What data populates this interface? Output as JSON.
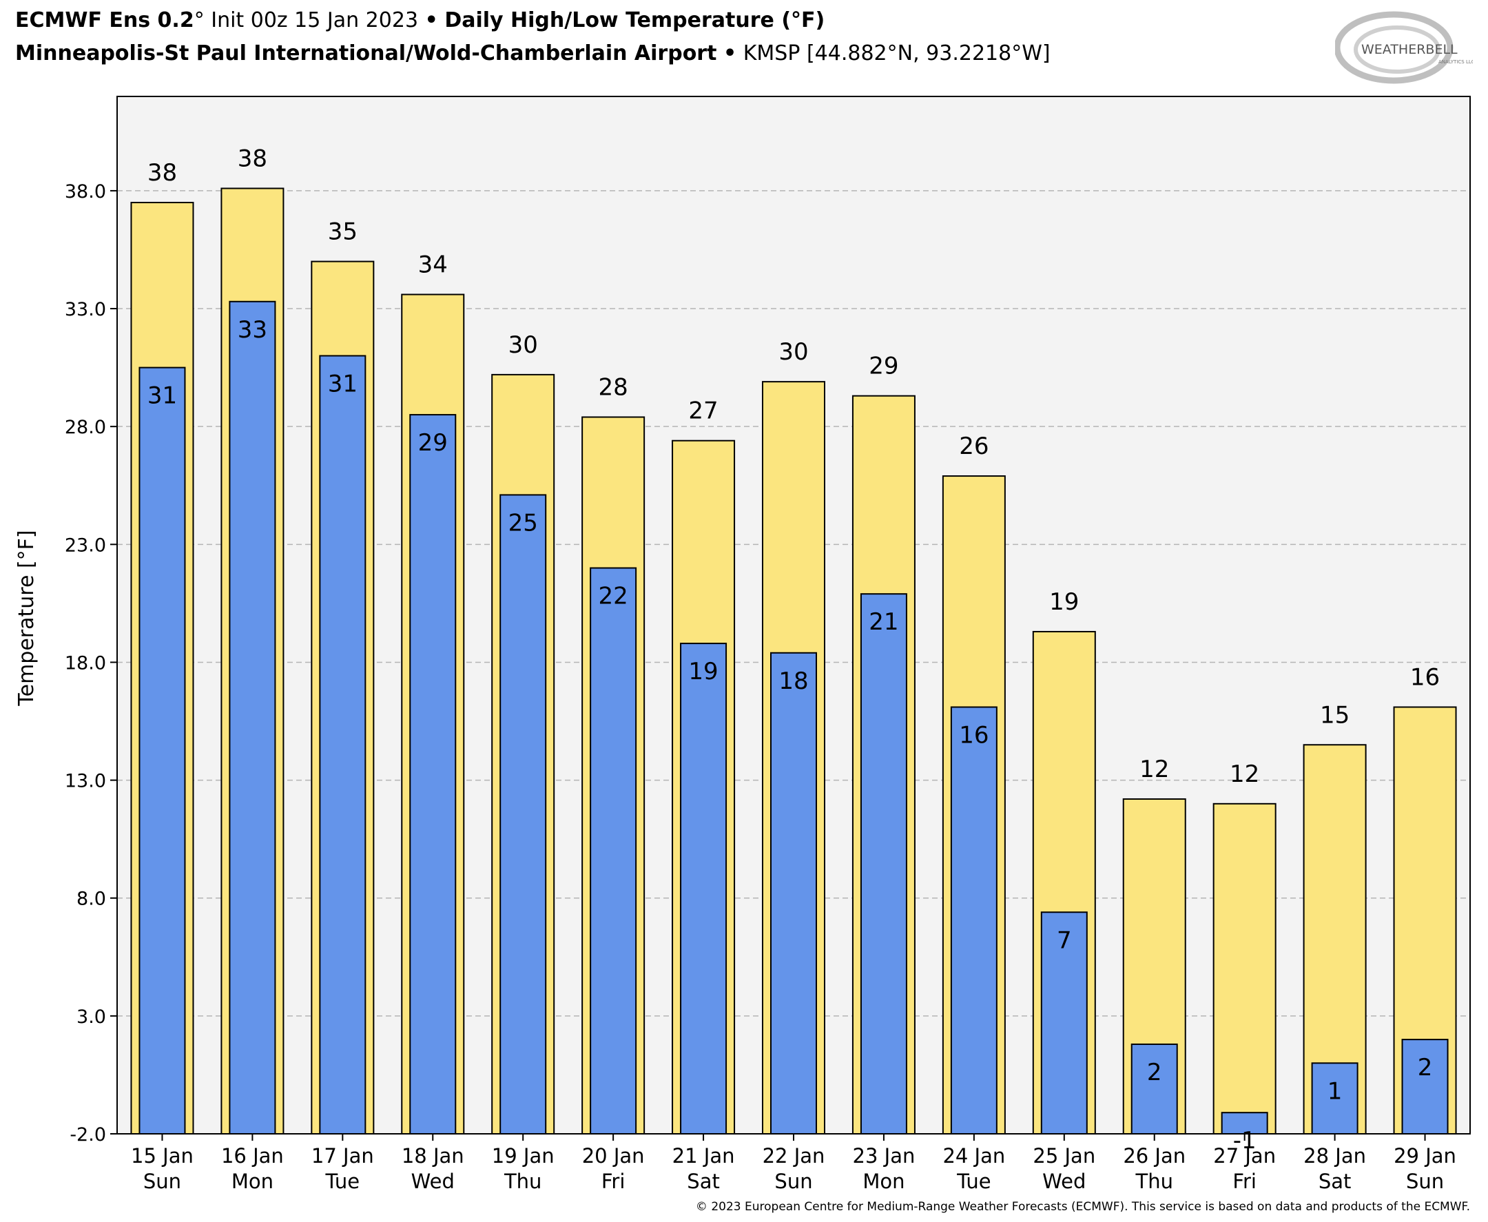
{
  "header": {
    "model": "ECMWF Ens 0.2",
    "deg_symbol": "°",
    "init": "Init 00z 15 Jan 2023",
    "bullet": "•",
    "product": "Daily High/Low Temperature (°F)",
    "station_name": "Minneapolis-St Paul International/Wold-Chamberlain Airport",
    "station_id": "KMSP [44.882°N, 93.2218°W]"
  },
  "logo": {
    "text_main": "WEATHERBELL",
    "text_sub": "ANALYTICS LLC"
  },
  "footer": "© 2023 European Centre for Medium-Range Weather Forecasts (ECMWF). This service is based on data and products of the ECMWF.",
  "colors": {
    "high_bar": "#fbe57f",
    "low_bar": "#6494ea",
    "plot_bg": "#f3f3f3",
    "grid": "#b4b4b4"
  },
  "chart_data": {
    "type": "bar",
    "ylabel": "Temperature [°F]",
    "ylim": [
      -2,
      42
    ],
    "yticks": [
      "-2.0",
      "3.0",
      "8.0",
      "13.0",
      "18.0",
      "23.0",
      "28.0",
      "33.0",
      "38.0"
    ],
    "grid": "horizontal dashed",
    "categories": [
      [
        "15 Jan",
        "Sun"
      ],
      [
        "16 Jan",
        "Mon"
      ],
      [
        "17 Jan",
        "Tue"
      ],
      [
        "18 Jan",
        "Wed"
      ],
      [
        "19 Jan",
        "Thu"
      ],
      [
        "20 Jan",
        "Fri"
      ],
      [
        "21 Jan",
        "Sat"
      ],
      [
        "22 Jan",
        "Sun"
      ],
      [
        "23 Jan",
        "Mon"
      ],
      [
        "24 Jan",
        "Tue"
      ],
      [
        "25 Jan",
        "Wed"
      ],
      [
        "26 Jan",
        "Thu"
      ],
      [
        "27 Jan",
        "Fri"
      ],
      [
        "28 Jan",
        "Sat"
      ],
      [
        "29 Jan",
        "Sun"
      ]
    ],
    "series": [
      {
        "values": [
          37.5,
          38.1,
          35.0,
          33.6,
          30.2,
          28.4,
          27.4,
          29.9,
          29.3,
          25.9,
          19.3,
          12.2,
          12.0,
          14.5,
          16.1
        ],
        "labels": [
          "38",
          "38",
          "35",
          "34",
          "30",
          "28",
          "27",
          "30",
          "29",
          "26",
          "19",
          "12",
          "12",
          "15",
          "16"
        ]
      },
      {
        "values": [
          30.5,
          33.3,
          31.0,
          28.5,
          25.1,
          22.0,
          18.8,
          18.4,
          20.9,
          16.1,
          7.4,
          1.8,
          -1.1,
          1.0,
          2.0
        ],
        "labels": [
          "31",
          "33",
          "31",
          "29",
          "25",
          "22",
          "19",
          "18",
          "21",
          "16",
          "7",
          "2",
          "-1",
          "1",
          "2"
        ]
      }
    ]
  }
}
